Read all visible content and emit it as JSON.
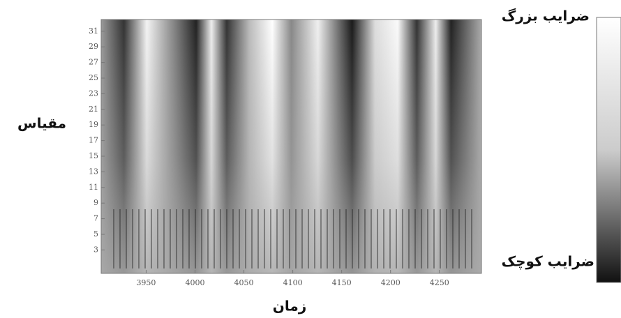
{
  "chart_data": {
    "type": "heatmap",
    "x_label": "زمان",
    "y_label": "مقیاس",
    "xlim": [
      3904,
      4293
    ],
    "xticks": [
      3950,
      4000,
      4050,
      4100,
      4150,
      4200,
      4250
    ],
    "ylim": [
      0,
      32.5
    ],
    "yticks": [
      3,
      5,
      7,
      9,
      11,
      13,
      15,
      17,
      19,
      21,
      23,
      25,
      27,
      29,
      31
    ],
    "colorbar_high_label": "ضرایب بزرگ",
    "colorbar_low_label": "ضرایب کوچک"
  }
}
